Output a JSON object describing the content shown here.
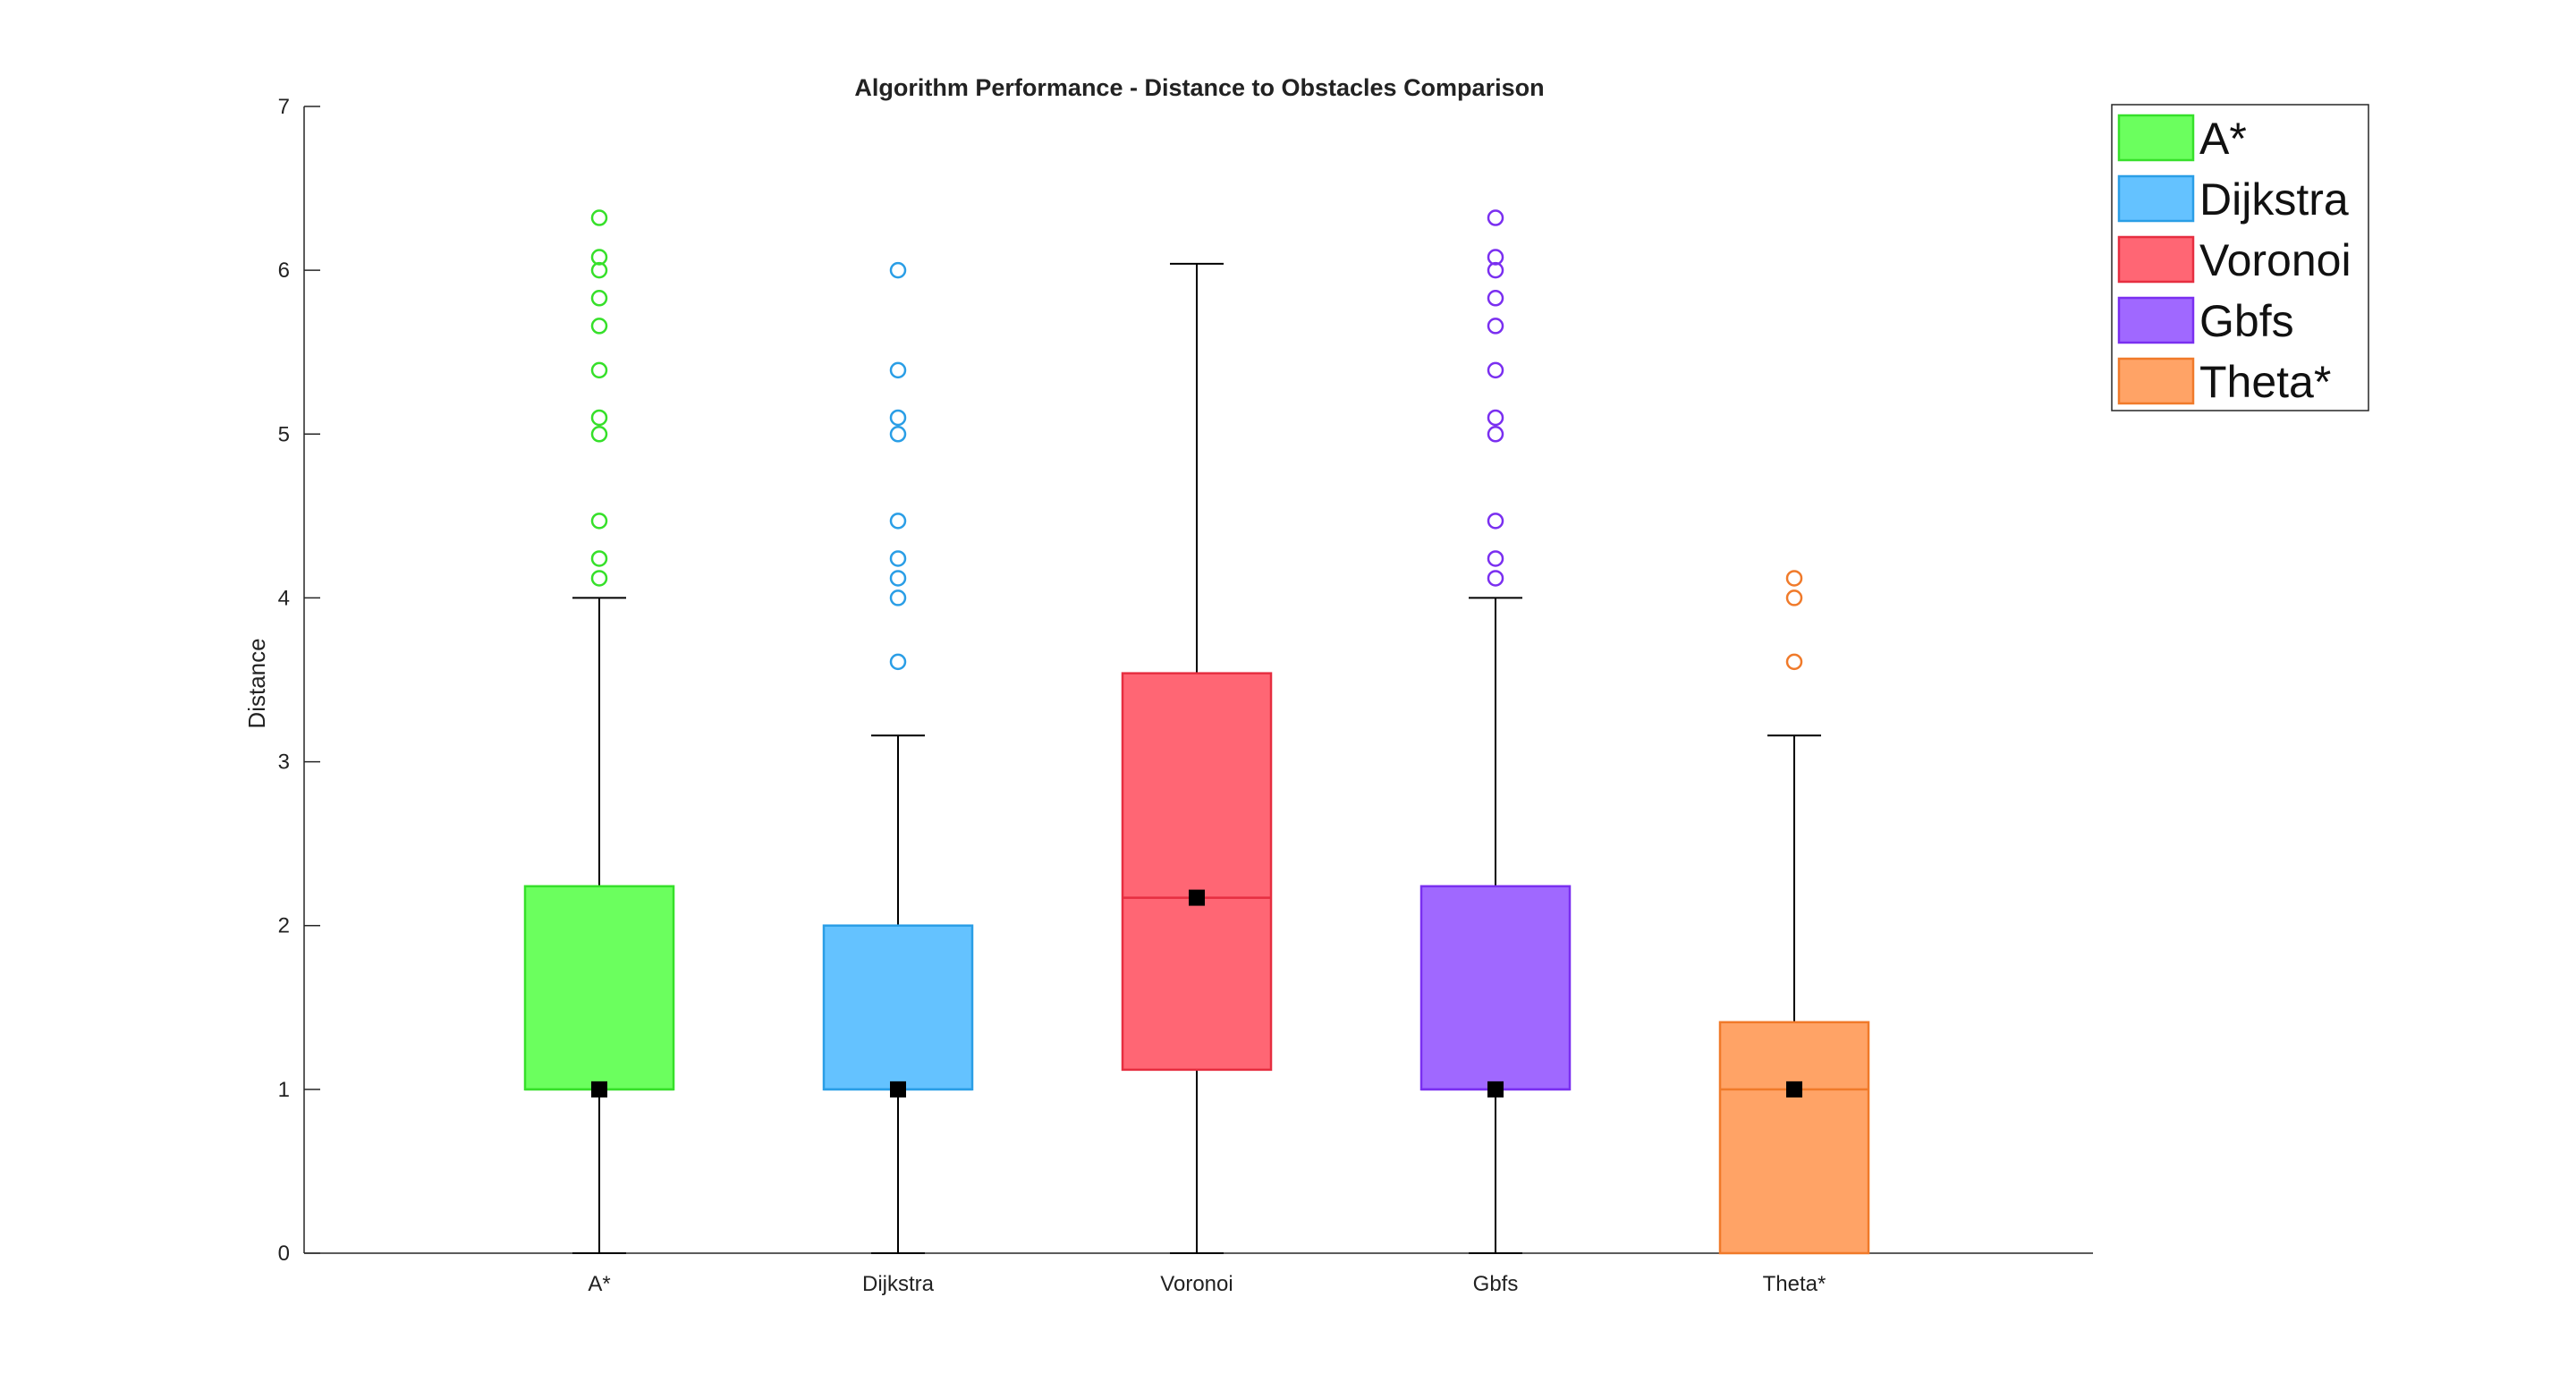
{
  "chart_data": {
    "type": "box",
    "title": "Algorithm Performance - Distance to Obstacles Comparison",
    "xlabel": "",
    "ylabel": "Distance",
    "ylim": [
      0,
      7
    ],
    "yticks": [
      0,
      1,
      2,
      3,
      4,
      5,
      6,
      7
    ],
    "legend_position": "top-right",
    "grid": false,
    "categories": [
      "A*",
      "Dijkstra",
      "Voronoi",
      "Gbfs",
      "Theta*"
    ],
    "series": [
      {
        "name": "A*",
        "fill": "#6bff5e",
        "edge": "#36e02a",
        "q1": 1.0,
        "median": 1.0,
        "q3": 2.24,
        "whisker_low": 0.0,
        "whisker_high": 4.0,
        "mean": 1.0,
        "outliers": [
          4.12,
          4.24,
          4.47,
          5.0,
          5.1,
          5.39,
          5.66,
          5.83,
          6.0,
          6.08,
          6.32
        ]
      },
      {
        "name": "Dijkstra",
        "fill": "#64c2ff",
        "edge": "#2a9ee6",
        "q1": 1.0,
        "median": 1.0,
        "q3": 2.0,
        "whisker_low": 0.0,
        "whisker_high": 3.16,
        "mean": 1.0,
        "outliers": [
          3.61,
          4.0,
          4.12,
          4.24,
          4.47,
          5.0,
          5.1,
          5.39,
          6.0
        ]
      },
      {
        "name": "Voronoi",
        "fill": "#ff6674",
        "edge": "#e62e40",
        "q1": 1.12,
        "median": 2.17,
        "q3": 3.54,
        "whisker_low": 0.0,
        "whisker_high": 6.04,
        "mean": 2.17,
        "outliers": []
      },
      {
        "name": "Gbfs",
        "fill": "#a068ff",
        "edge": "#7a2ff0",
        "q1": 1.0,
        "median": 1.0,
        "q3": 2.24,
        "whisker_low": 0.0,
        "whisker_high": 4.0,
        "mean": 1.0,
        "outliers": [
          4.12,
          4.24,
          4.47,
          5.0,
          5.1,
          5.39,
          5.66,
          5.83,
          6.0,
          6.08,
          6.32
        ]
      },
      {
        "name": "Theta*",
        "fill": "#ffa366",
        "edge": "#f07a2a",
        "q1": 0.0,
        "median": 1.0,
        "q3": 1.41,
        "whisker_low": 0.0,
        "whisker_high": 3.16,
        "mean": 1.0,
        "outliers": [
          3.61,
          4.0,
          4.12
        ]
      }
    ]
  }
}
